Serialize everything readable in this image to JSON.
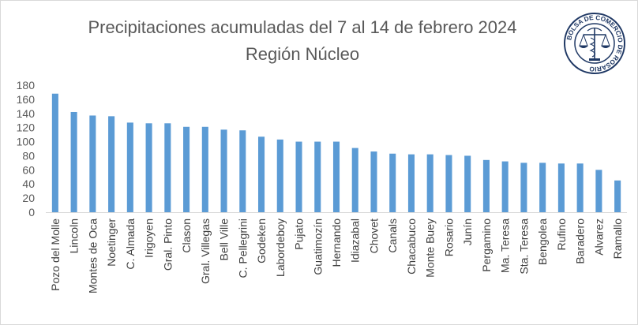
{
  "chart_data": {
    "type": "bar",
    "title": "Precipitaciones acumuladas del 7 al 14 de febrero 2024",
    "subtitle": "Región Núcleo",
    "xlabel": "",
    "ylabel": "",
    "ylim": [
      0,
      180
    ],
    "yticks": [
      0,
      20,
      40,
      60,
      80,
      100,
      120,
      140,
      160,
      180
    ],
    "grid": false,
    "legend": "none",
    "bar_color": "#5B9BD5",
    "categories": [
      "Pozo del Molle",
      "Lincoln",
      "Montes de Oca",
      "Noetinger",
      "C. Almada",
      "Irigoyen",
      "Gral. Pinto",
      "Clason",
      "Gral. Villegas",
      "Bell Ville",
      "C. Pellegrini",
      "Godeken",
      "Labordeboy",
      "Pujato",
      "Guatimozín",
      "Hernando",
      "Idiazabal",
      "Chovet",
      "Canals",
      "Chacabuco",
      "Monte Buey",
      "Rosario",
      "Junín",
      "Pergamino",
      "Ma. Teresa",
      "Sta. Teresa",
      "Bengolea",
      "Rufino",
      "Baradero",
      "Alvarez",
      "Ramallo"
    ],
    "values": [
      168,
      142,
      137,
      136,
      127,
      126,
      126,
      121,
      121,
      117,
      116,
      107,
      103,
      100,
      100,
      100,
      91,
      86,
      83,
      82,
      82,
      81,
      80,
      74,
      72,
      70,
      70,
      69,
      69,
      60,
      45
    ]
  },
  "logo": {
    "ring_text": "BOLSA DE COMERCIO DE ROSARIO",
    "color": "#1f3864"
  }
}
